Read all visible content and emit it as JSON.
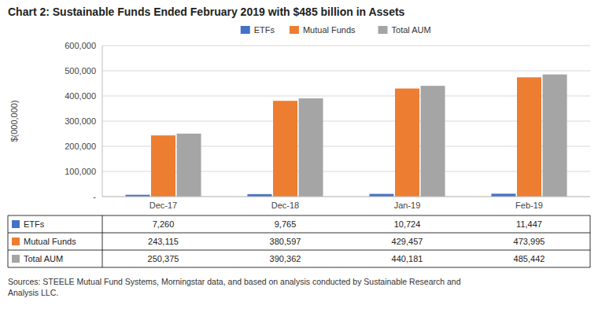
{
  "chart_data": {
    "type": "bar",
    "title": "Chart 2:  Sustainable Funds Ended February 2019 with $485 billion in Assets",
    "categories": [
      "Dec-17",
      "Dec-18",
      "Jan-19",
      "Feb-19"
    ],
    "series": [
      {
        "name": "ETFs",
        "color": "#4472C4",
        "values": [
          7260,
          9765,
          10724,
          11447
        ]
      },
      {
        "name": "Mutual Funds",
        "color": "#ED7D31",
        "values": [
          243115,
          380597,
          429457,
          473995
        ]
      },
      {
        "name": "Total AUM",
        "color": "#A5A5A5",
        "values": [
          250375,
          390362,
          440181,
          485442
        ]
      }
    ],
    "ylabel": "$(000,000)",
    "ylim": [
      0,
      600000
    ],
    "yticks": [
      {
        "value": 0,
        "label": "-"
      },
      {
        "value": 100000,
        "label": "100,000"
      },
      {
        "value": 200000,
        "label": "200,000"
      },
      {
        "value": 300000,
        "label": "300,000"
      },
      {
        "value": 400000,
        "label": "400,000"
      },
      {
        "value": 500000,
        "label": "500,000"
      },
      {
        "value": 600000,
        "label": "600,000"
      }
    ],
    "grid": true,
    "legend": "top",
    "table": [
      {
        "name": "ETFs",
        "color": "#4472C4",
        "value_labels": [
          "7,260",
          "9,765",
          "10,724",
          "11,447"
        ]
      },
      {
        "name": "Mutual Funds",
        "color": "#ED7D31",
        "value_labels": [
          "243,115",
          "380,597",
          "429,457",
          "473,995"
        ]
      },
      {
        "name": "Total AUM",
        "color": "#A5A5A5",
        "value_labels": [
          "250,375",
          "390,362",
          "440,181",
          "485,442"
        ]
      }
    ],
    "source": "Sources:  STEELE Mutual Fund Systems, Morningstar data, and based on analysis conducted by Sustainable Research and\nAnalysis LLC."
  }
}
